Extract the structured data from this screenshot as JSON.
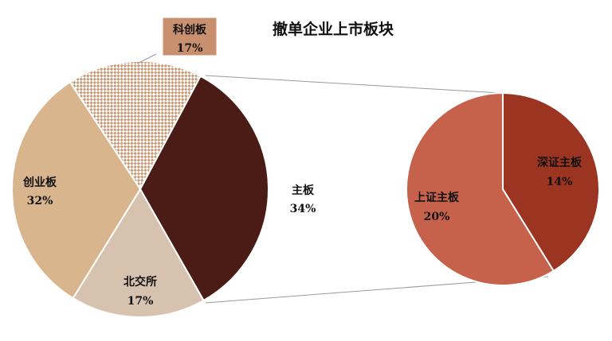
{
  "chart_data": [
    {
      "type": "pie",
      "title": "撤单企业上市板块",
      "categories": [
        "科创板",
        "主板",
        "北交所",
        "创业板"
      ],
      "values": [
        17,
        34,
        17,
        32
      ],
      "value_labels": [
        "17%",
        "34%",
        "17%",
        "32%"
      ],
      "colors": [
        "#c89a78",
        "#4a1c15",
        "#d7c2b0",
        "#d8b58c"
      ],
      "patterns": [
        "checker",
        null,
        null,
        null
      ]
    },
    {
      "type": "pie",
      "categories": [
        "深证主板",
        "上证主板"
      ],
      "values": [
        14,
        20
      ],
      "value_labels": [
        "14%",
        "20%"
      ],
      "colors": [
        "#9b3421",
        "#c6614b"
      ]
    }
  ]
}
